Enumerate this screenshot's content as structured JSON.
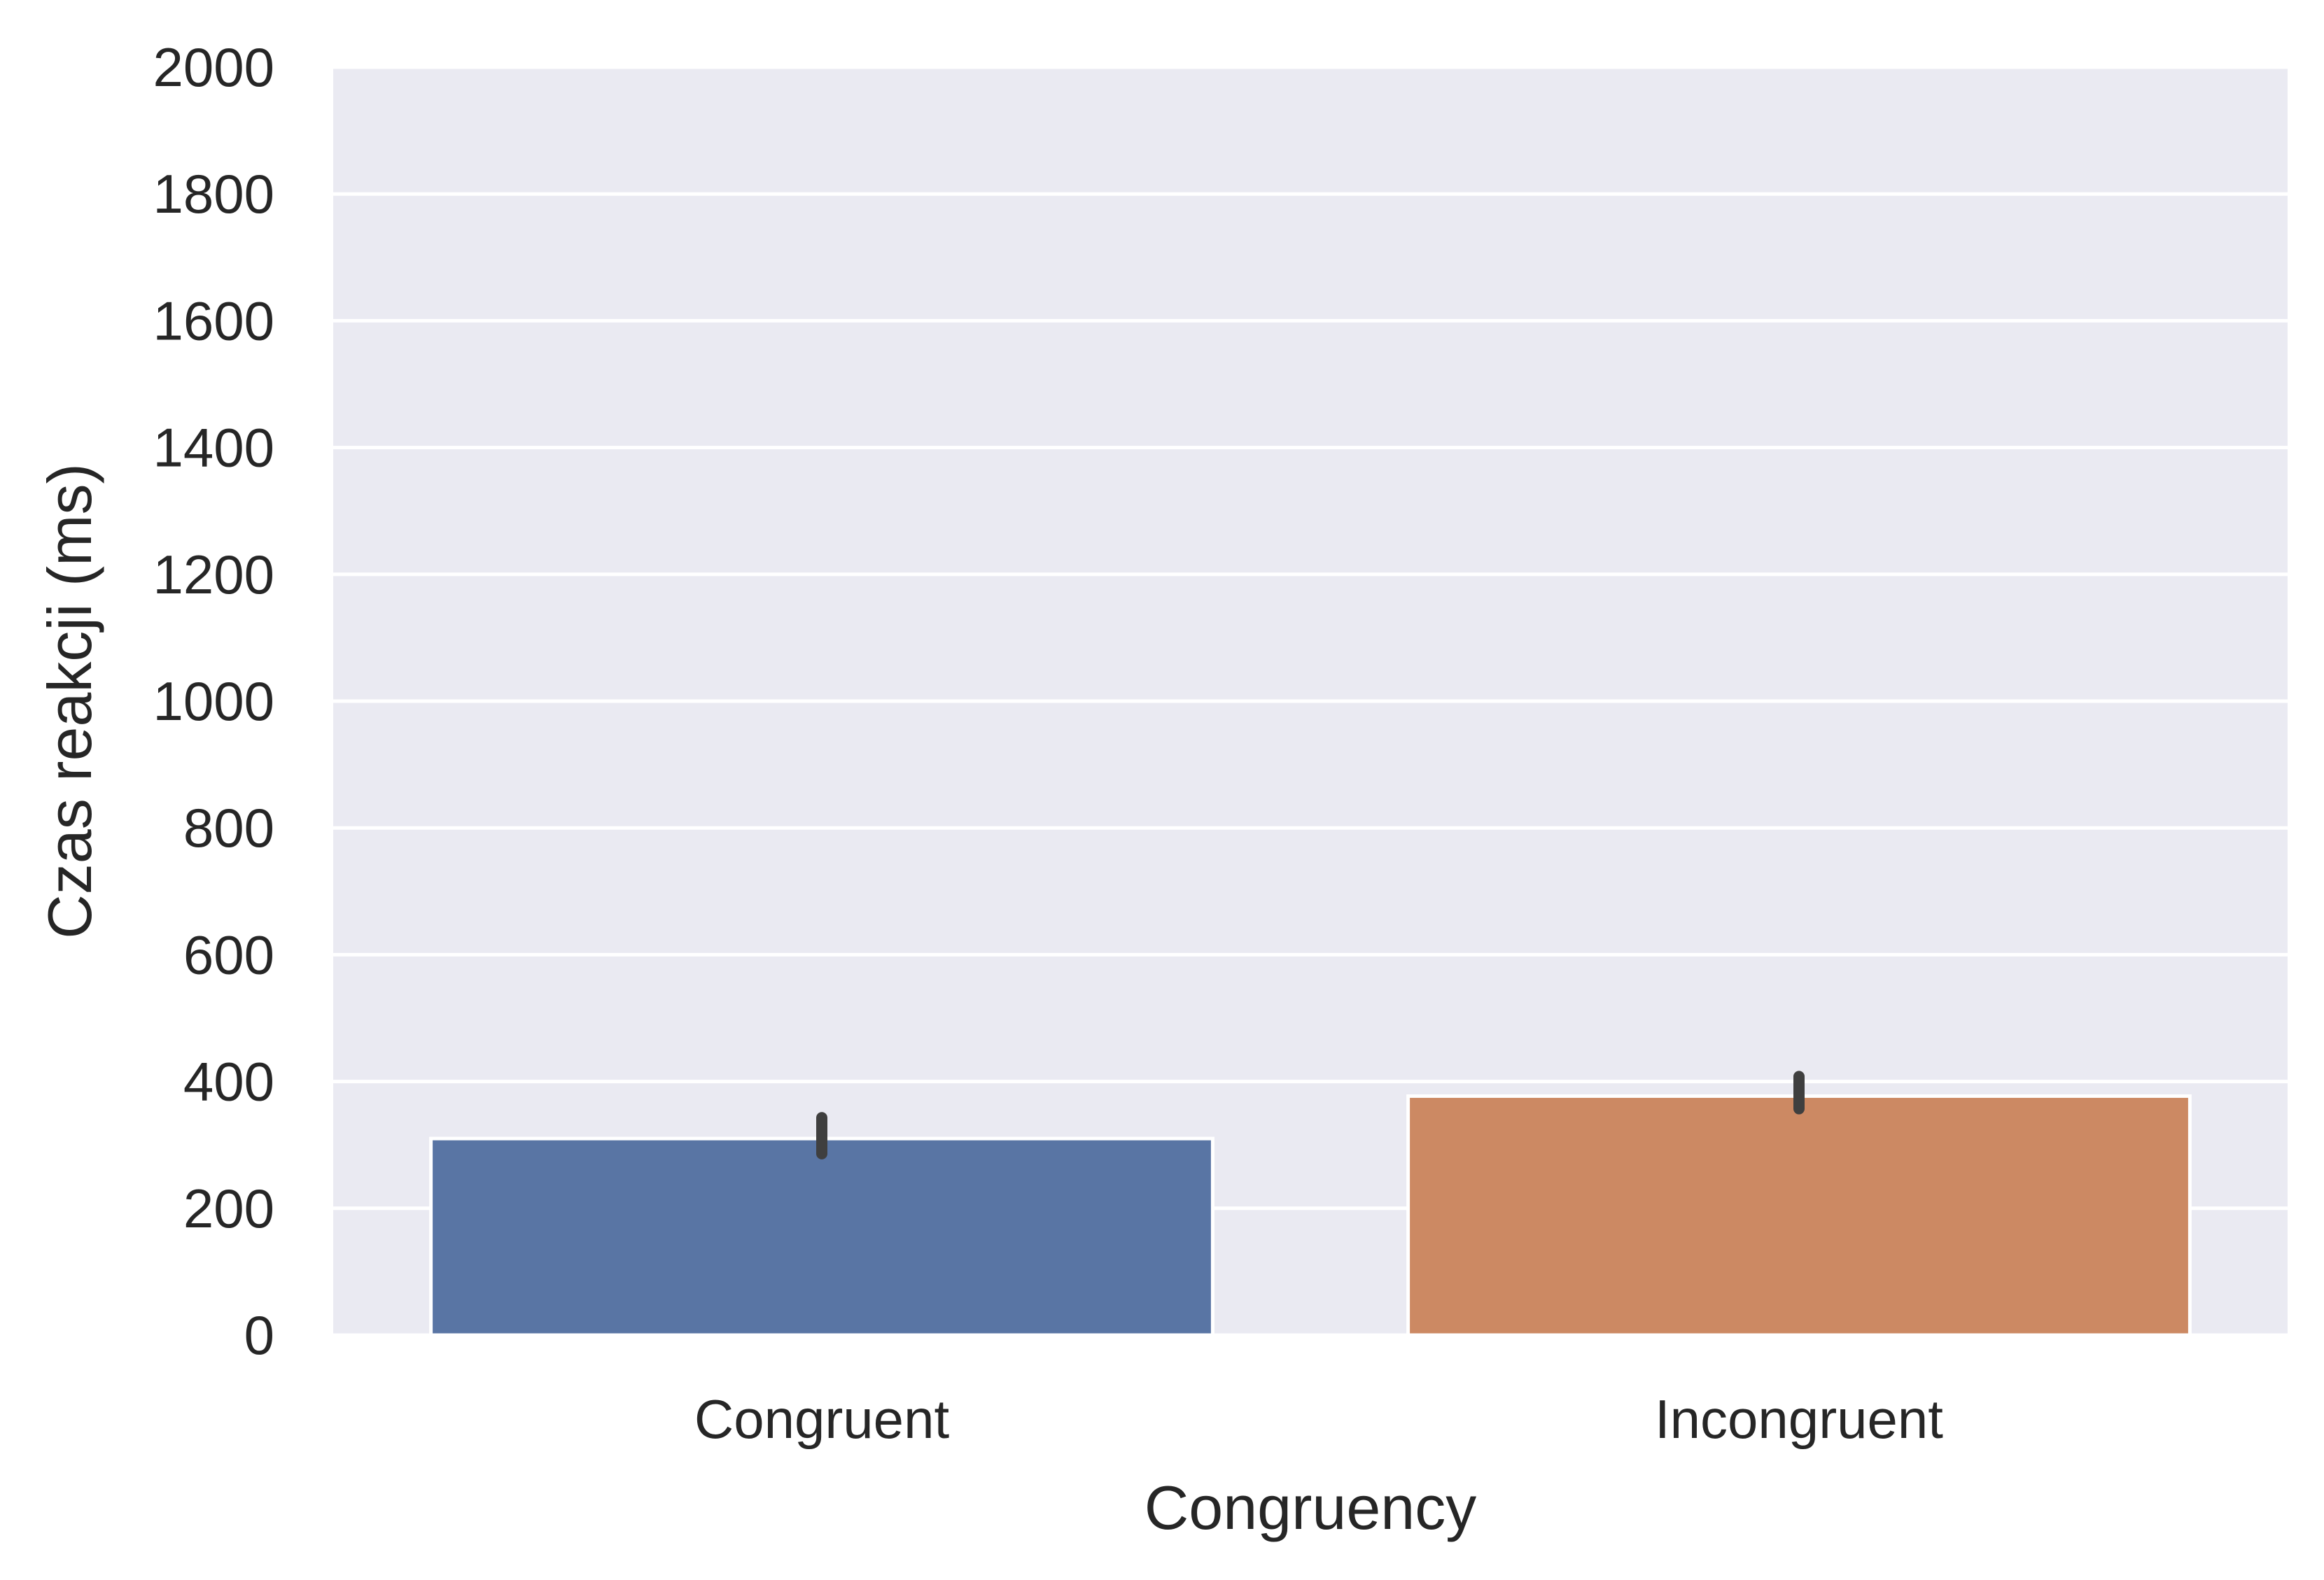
{
  "chart_data": {
    "type": "bar",
    "title": "",
    "xlabel": "Congruency",
    "ylabel": "Czas reakcji (ms)",
    "categories": [
      "Congruent",
      "Incongruent"
    ],
    "values": [
      310,
      377
    ],
    "error_bars": [
      [
        286,
        343
      ],
      [
        357,
        408
      ]
    ],
    "ylim": [
      0,
      2000
    ],
    "yticks": [
      0,
      200,
      400,
      600,
      800,
      1000,
      1200,
      1400,
      1600,
      1800,
      2000
    ],
    "grid": true,
    "legend": "none",
    "colors": {
      "bars": [
        "#5975a4",
        "#cc8963"
      ],
      "background": "#eaeaf2",
      "grid": "#ffffff",
      "error_bar": "#3f3f3f",
      "text": "#262626"
    }
  }
}
